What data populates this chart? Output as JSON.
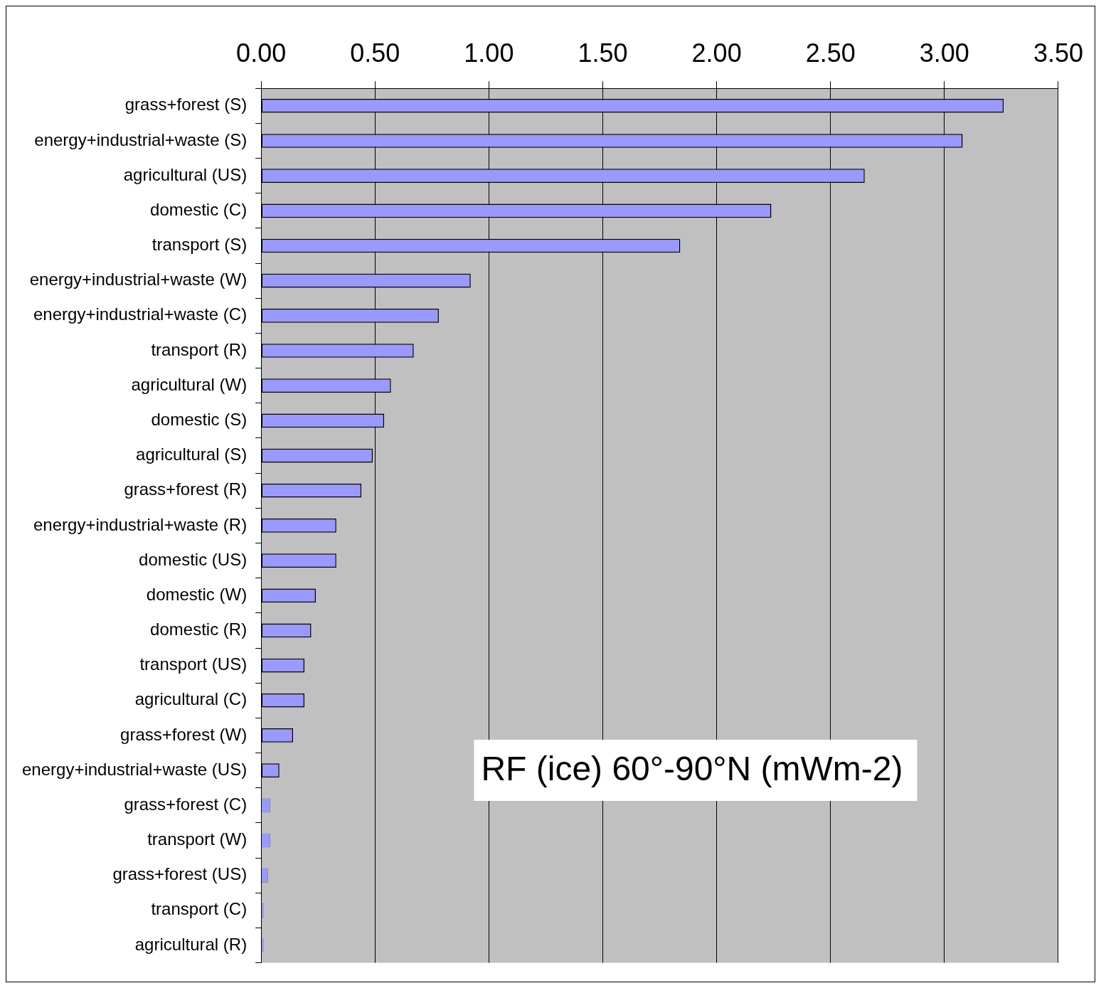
{
  "chart_data": {
    "type": "bar",
    "orientation": "horizontal",
    "categories": [
      "grass+forest (S)",
      "energy+industrial+waste (S)",
      "agricultural (US)",
      "domestic (C)",
      "transport (S)",
      "energy+industrial+waste (W)",
      "energy+industrial+waste (C)",
      "transport (R)",
      "agricultural (W)",
      "domestic (S)",
      "agricultural (S)",
      "grass+forest (R)",
      "energy+industrial+waste (R)",
      "domestic (US)",
      "domestic (W)",
      "domestic (R)",
      "transport (US)",
      "agricultural (C)",
      "grass+forest (W)",
      "energy+industrial+waste (US)",
      "grass+forest (C)",
      "transport (W)",
      "grass+forest (US)",
      "transport (C)",
      "agricultural (R)"
    ],
    "values": [
      3.26,
      3.08,
      2.65,
      2.24,
      1.84,
      0.92,
      0.78,
      0.67,
      0.57,
      0.54,
      0.49,
      0.44,
      0.33,
      0.33,
      0.24,
      0.22,
      0.19,
      0.19,
      0.14,
      0.08,
      0.04,
      0.04,
      0.03,
      0.01,
      0.01
    ],
    "color": "#9999ff",
    "xlim": [
      0,
      3.5
    ],
    "xticks": [
      {
        "value": 0,
        "label": "0.00"
      },
      {
        "value": 0.5,
        "label": "0.50"
      },
      {
        "value": 1,
        "label": "1.00"
      },
      {
        "value": 1.5,
        "label": "1.50"
      },
      {
        "value": 2,
        "label": "2.00"
      },
      {
        "value": 2.5,
        "label": "2.50"
      },
      {
        "value": 3,
        "label": "3.00"
      },
      {
        "value": 3.5,
        "label": "3.50"
      }
    ],
    "grid": "x",
    "legend": false,
    "annotations": [
      "RF (ice) 60°-90°N (mWm-2)"
    ]
  }
}
